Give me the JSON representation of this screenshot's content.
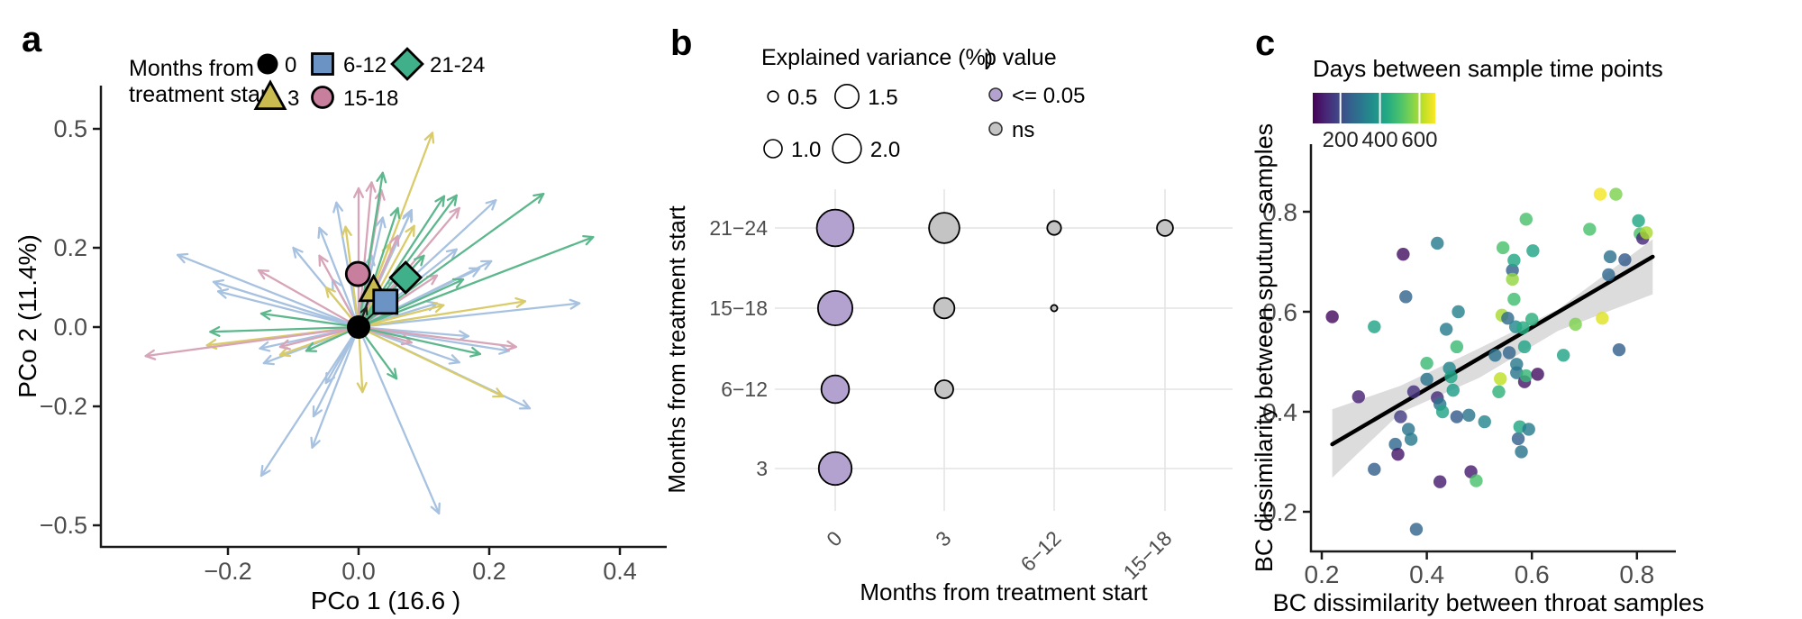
{
  "panels": {
    "a": {
      "letter": "a"
    },
    "b": {
      "letter": "b"
    },
    "c": {
      "letter": "c"
    }
  },
  "colors": {
    "axis_line": "#1a1a1a",
    "tick_label": "#4d4d4d",
    "title_text": "#000000",
    "gridline": "#e4e4e4",
    "bubble_significant": "#b3a2cf",
    "bubble_ns": "#c4c4c4",
    "ribbon": "#d8d8d8",
    "regression_line": "#000000"
  },
  "chart_data": [
    {
      "id": "a",
      "type": "scatter",
      "subtype": "pcoa-vector-plot",
      "xlabel": "PCo 1 (16.6  )",
      "ylabel": "PCo 2 (11.4%)",
      "xlim": [
        -0.38,
        0.47
      ],
      "ylim": [
        -0.56,
        0.61
      ],
      "xticks": [
        [
          -0.2,
          "−0.2"
        ],
        [
          0.0,
          "0.0"
        ],
        [
          0.2,
          "0.2"
        ],
        [
          0.4,
          "0.4"
        ]
      ],
      "yticks": [
        [
          0.5,
          "0.5"
        ],
        [
          0.2,
          "0.2"
        ],
        [
          0.0,
          "0.0"
        ],
        [
          -0.2,
          "−0.2"
        ],
        [
          -0.5,
          "−0.5"
        ]
      ],
      "legend": {
        "title_lines": [
          "Months from",
          "treatment start"
        ],
        "items": [
          {
            "label": "0",
            "shape": "circle",
            "color": "#000000"
          },
          {
            "label": "3",
            "shape": "triangle",
            "color": "#c9bb50"
          },
          {
            "label": "6-12",
            "shape": "square",
            "color": "#6b93c3"
          },
          {
            "label": "15-18",
            "shape": "circle",
            "color": "#c87f9e"
          },
          {
            "label": "21-24",
            "shape": "diamond",
            "color": "#3fb08a"
          }
        ]
      },
      "arrow_colors": {
        "3": "#d9c963",
        "6-12": "#a3bfdf",
        "15-18": "#d5a0b5",
        "21-24": "#54b486"
      },
      "arrows": [
        [
          "6-12",
          -0.277,
          0.182
        ],
        [
          "6-12",
          -0.222,
          0.114
        ],
        [
          "6-12",
          -0.215,
          0.09
        ],
        [
          "6-12",
          -0.151,
          -0.054
        ],
        [
          "6-12",
          -0.145,
          -0.091
        ],
        [
          "6-12",
          -0.149,
          -0.375
        ],
        [
          "6-12",
          -0.071,
          -0.304
        ],
        [
          "6-12",
          -0.069,
          -0.225
        ],
        [
          "6-12",
          -0.05,
          -0.141
        ],
        [
          "6-12",
          0.123,
          -0.47
        ],
        [
          "6-12",
          0.262,
          -0.205
        ],
        [
          "6-12",
          0.338,
          0.06
        ],
        [
          "6-12",
          0.168,
          -0.023
        ],
        [
          "6-12",
          0.154,
          -0.089
        ],
        [
          "6-12",
          0.185,
          0.148
        ],
        [
          "6-12",
          0.15,
          0.196
        ],
        [
          "6-12",
          0.21,
          0.32
        ],
        [
          "6-12",
          0.08,
          0.29
        ],
        [
          "6-12",
          -0.034,
          0.314
        ],
        [
          "6-12",
          0.037,
          0.276
        ],
        [
          "6-12",
          0.081,
          0.295
        ],
        [
          "6-12",
          0.203,
          0.166
        ],
        [
          "6-12",
          -0.1,
          0.2
        ],
        [
          "6-12",
          -0.06,
          0.25
        ],
        [
          "6-12",
          0.02,
          0.18
        ],
        [
          "6-12",
          0.06,
          0.12
        ],
        [
          "6-12",
          0.0,
          0.15
        ],
        [
          "6-12",
          0.23,
          -0.06
        ],
        [
          "6-12",
          0.12,
          0.06
        ],
        [
          "6-12",
          -0.04,
          0.12
        ],
        [
          "3",
          0.113,
          0.49
        ],
        [
          "3",
          -0.02,
          0.253
        ],
        [
          "3",
          -0.232,
          -0.046
        ],
        [
          "3",
          0.006,
          -0.164
        ],
        [
          "3",
          0.221,
          -0.175
        ],
        [
          "3",
          0.085,
          0.255
        ],
        [
          "3",
          0.048,
          0.21
        ],
        [
          "3",
          -0.12,
          -0.07
        ],
        [
          "3",
          0.13,
          0.055
        ],
        [
          "3",
          0.255,
          0.065
        ],
        [
          "3",
          -0.05,
          0.1
        ],
        [
          "15-18",
          -0.326,
          -0.073
        ],
        [
          "15-18",
          -0.153,
          0.143
        ],
        [
          "15-18",
          0.0,
          0.35
        ],
        [
          "15-18",
          0.02,
          0.365
        ],
        [
          "15-18",
          0.035,
          0.345
        ],
        [
          "15-18",
          0.154,
          0.3
        ],
        [
          "15-18",
          0.241,
          -0.05
        ],
        [
          "15-18",
          -0.12,
          -0.05
        ],
        [
          "15-18",
          0.081,
          -0.039
        ],
        [
          "15-18",
          -0.06,
          0.18
        ],
        [
          "15-18",
          0.06,
          0.23
        ],
        [
          "15-18",
          0.12,
          0.13
        ],
        [
          "21-24",
          0.037,
          0.389
        ],
        [
          "21-24",
          0.131,
          0.33
        ],
        [
          "21-24",
          0.15,
          0.332
        ],
        [
          "21-24",
          0.283,
          0.336
        ],
        [
          "21-24",
          0.359,
          0.227
        ],
        [
          "21-24",
          -0.149,
          0.034
        ],
        [
          "21-24",
          -0.227,
          -0.012
        ],
        [
          "21-24",
          0.058,
          -0.13
        ],
        [
          "21-24",
          0.186,
          -0.068
        ],
        [
          "21-24",
          0.06,
          0.3
        ],
        [
          "21-24",
          0.1,
          0.18
        ],
        [
          "21-24",
          0.16,
          0.12
        ],
        [
          "21-24",
          -0.08,
          -0.06
        ]
      ],
      "black_arrows": [
        [
          0.02,
          0.09
        ],
        [
          0.04,
          0.06
        ],
        [
          0.012,
          0.05
        ]
      ],
      "centroids": [
        {
          "group": "3",
          "shape": "triangle",
          "x": 0.023,
          "y": 0.093,
          "color": "#c9bb50"
        },
        {
          "group": "6-12",
          "shape": "square",
          "x": 0.041,
          "y": 0.064,
          "color": "#6b93c3"
        },
        {
          "group": "21-24",
          "shape": "diamond",
          "x": 0.072,
          "y": 0.125,
          "color": "#3fb08a"
        },
        {
          "group": "15-18",
          "shape": "circle",
          "x": -0.001,
          "y": 0.134,
          "color": "#c87f9e"
        },
        {
          "group": "0",
          "shape": "circle",
          "x": 0.0,
          "y": 0.0,
          "color": "#000000"
        }
      ]
    },
    {
      "id": "b",
      "type": "bubble",
      "xlabel": "Months from treatment start",
      "ylabel": "Months from treatment start",
      "x_categories": [
        "0",
        "3",
        "6−12",
        "15−18"
      ],
      "y_categories_top_to_bottom": [
        "21−24",
        "15−18",
        "6−12",
        "3"
      ],
      "size_legend": {
        "title": "Explained variance (%)",
        "values": [
          0.5,
          1.0,
          1.5,
          2.0
        ]
      },
      "p_legend": {
        "title": "p value",
        "items": [
          {
            "label": "<= 0.05",
            "color": "#b3a2cf"
          },
          {
            "label": "ns",
            "color": "#c4c4c4"
          }
        ]
      },
      "bubbles": [
        {
          "col": "0",
          "row": "21−24",
          "variance": 3.0,
          "significant": true
        },
        {
          "col": "3",
          "row": "21−24",
          "variance": 2.2,
          "significant": false
        },
        {
          "col": "6−12",
          "row": "21−24",
          "variance": 0.7,
          "significant": false
        },
        {
          "col": "15−18",
          "row": "21−24",
          "variance": 0.85,
          "significant": false
        },
        {
          "col": "0",
          "row": "15−18",
          "variance": 2.7,
          "significant": true
        },
        {
          "col": "3",
          "row": "15−18",
          "variance": 1.2,
          "significant": false
        },
        {
          "col": "6−12",
          "row": "15−18",
          "variance": 0.3,
          "significant": false
        },
        {
          "col": "0",
          "row": "6−12",
          "variance": 1.9,
          "significant": true
        },
        {
          "col": "3",
          "row": "6−12",
          "variance": 1.0,
          "significant": false
        },
        {
          "col": "0",
          "row": "3",
          "variance": 2.5,
          "significant": true
        }
      ]
    },
    {
      "id": "c",
      "type": "scatter",
      "xlabel": "BC dissimilarity between throat samples",
      "ylabel": "BC dissimilarity between sputum samples",
      "xticks": [
        [
          0.2,
          "0.2"
        ],
        [
          0.4,
          "0.4"
        ],
        [
          0.6,
          "0.6"
        ],
        [
          0.8,
          "0.8"
        ]
      ],
      "yticks": [
        [
          0.2,
          "0.2"
        ],
        [
          0.4,
          "0.4"
        ],
        [
          0.6,
          "0.6"
        ],
        [
          0.8,
          "0.8"
        ]
      ],
      "colorbar": {
        "title": "Days between sample time points",
        "ticks": [
          200,
          400,
          600
        ],
        "domain": [
          60,
          680
        ]
      },
      "regression": {
        "x1": 0.22,
        "y1": 0.335,
        "x2": 0.83,
        "y2": 0.71
      },
      "ribbon": {
        "upper": [
          [
            0.22,
            0.405
          ],
          [
            0.35,
            0.452
          ],
          [
            0.5,
            0.527
          ],
          [
            0.65,
            0.605
          ],
          [
            0.83,
            0.745
          ]
        ],
        "lower": [
          [
            0.22,
            0.268
          ],
          [
            0.35,
            0.398
          ],
          [
            0.5,
            0.468
          ],
          [
            0.65,
            0.562
          ],
          [
            0.83,
            0.635
          ]
        ]
      },
      "points": [
        [
          0.22,
          0.59,
          80
        ],
        [
          0.27,
          0.43,
          120
        ],
        [
          0.3,
          0.285,
          250
        ],
        [
          0.3,
          0.57,
          420
        ],
        [
          0.34,
          0.335,
          270
        ],
        [
          0.345,
          0.315,
          100
        ],
        [
          0.35,
          0.39,
          170
        ],
        [
          0.355,
          0.715,
          90
        ],
        [
          0.36,
          0.63,
          260
        ],
        [
          0.365,
          0.365,
          300
        ],
        [
          0.37,
          0.345,
          310
        ],
        [
          0.375,
          0.44,
          150
        ],
        [
          0.38,
          0.165,
          260
        ],
        [
          0.4,
          0.497,
          480
        ],
        [
          0.4,
          0.465,
          300
        ],
        [
          0.425,
          0.26,
          110
        ],
        [
          0.42,
          0.428,
          140
        ],
        [
          0.42,
          0.737,
          320
        ],
        [
          0.425,
          0.415,
          300
        ],
        [
          0.43,
          0.4,
          420
        ],
        [
          0.437,
          0.565,
          320
        ],
        [
          0.443,
          0.487,
          350
        ],
        [
          0.446,
          0.47,
          420
        ],
        [
          0.45,
          0.443,
          400
        ],
        [
          0.457,
          0.53,
          480
        ],
        [
          0.457,
          0.39,
          240
        ],
        [
          0.46,
          0.6,
          330
        ],
        [
          0.48,
          0.393,
          300
        ],
        [
          0.484,
          0.28,
          110
        ],
        [
          0.494,
          0.262,
          500
        ],
        [
          0.51,
          0.38,
          350
        ],
        [
          0.53,
          0.513,
          290
        ],
        [
          0.537,
          0.44,
          460
        ],
        [
          0.54,
          0.466,
          620
        ],
        [
          0.543,
          0.593,
          600
        ],
        [
          0.545,
          0.728,
          500
        ],
        [
          0.554,
          0.587,
          280
        ],
        [
          0.557,
          0.518,
          260
        ],
        [
          0.563,
          0.683,
          250
        ],
        [
          0.563,
          0.665,
          580
        ],
        [
          0.566,
          0.703,
          430
        ],
        [
          0.566,
          0.625,
          490
        ],
        [
          0.569,
          0.57,
          350
        ],
        [
          0.571,
          0.495,
          310
        ],
        [
          0.571,
          0.478,
          300
        ],
        [
          0.574,
          0.346,
          250
        ],
        [
          0.577,
          0.37,
          430
        ],
        [
          0.58,
          0.32,
          300
        ],
        [
          0.583,
          0.568,
          440
        ],
        [
          0.586,
          0.53,
          420
        ],
        [
          0.586,
          0.46,
          100
        ],
        [
          0.589,
          0.472,
          470
        ],
        [
          0.589,
          0.785,
          500
        ],
        [
          0.594,
          0.365,
          320
        ],
        [
          0.6,
          0.585,
          450
        ],
        [
          0.602,
          0.722,
          420
        ],
        [
          0.611,
          0.475,
          90
        ],
        [
          0.66,
          0.513,
          420
        ],
        [
          0.683,
          0.575,
          560
        ],
        [
          0.71,
          0.765,
          500
        ],
        [
          0.73,
          0.835,
          670
        ],
        [
          0.734,
          0.587,
          650
        ],
        [
          0.749,
          0.71,
          290
        ],
        [
          0.746,
          0.674,
          270
        ],
        [
          0.76,
          0.835,
          560
        ],
        [
          0.766,
          0.524,
          250
        ],
        [
          0.777,
          0.704,
          240
        ],
        [
          0.803,
          0.782,
          430
        ],
        [
          0.806,
          0.756,
          500
        ],
        [
          0.811,
          0.747,
          130
        ],
        [
          0.818,
          0.758,
          600
        ]
      ]
    }
  ]
}
